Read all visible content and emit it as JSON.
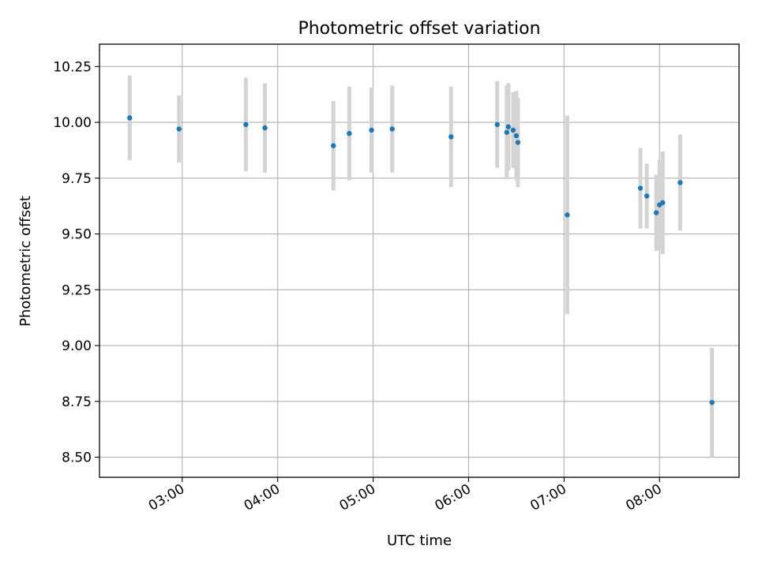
{
  "chart_data": {
    "type": "scatter",
    "title": "Photometric offset variation",
    "xlabel": "UTC time",
    "ylabel": "Photometric offset",
    "x_axis_type": "time",
    "xlim": [
      "02:08",
      "08:50"
    ],
    "ylim": [
      8.41,
      10.35
    ],
    "grid": true,
    "x_ticks": [
      "03:00",
      "04:00",
      "05:00",
      "06:00",
      "07:00",
      "08:00"
    ],
    "y_ticks": [
      "8.50",
      "8.75",
      "9.00",
      "9.25",
      "9.50",
      "9.75",
      "10.00",
      "10.25"
    ],
    "point_color": "#1f77b4",
    "errorbar_color": "#d3d3d3",
    "series": [
      {
        "points": [
          {
            "time": "02:27",
            "y": 10.02,
            "err": 0.19
          },
          {
            "time": "02:58",
            "y": 9.97,
            "err": 0.15
          },
          {
            "time": "03:40",
            "y": 9.99,
            "err": 0.21
          },
          {
            "time": "03:52",
            "y": 9.975,
            "err": 0.2
          },
          {
            "time": "04:35",
            "y": 9.895,
            "err": 0.2
          },
          {
            "time": "04:45",
            "y": 9.95,
            "err": 0.21
          },
          {
            "time": "04:59",
            "y": 9.965,
            "err": 0.19
          },
          {
            "time": "05:12",
            "y": 9.97,
            "err": 0.195
          },
          {
            "time": "05:49",
            "y": 9.935,
            "err": 0.225
          },
          {
            "time": "06:18",
            "y": 9.99,
            "err": 0.195
          },
          {
            "time": "06:24",
            "y": 9.955,
            "err": 0.21
          },
          {
            "time": "06:25",
            "y": 9.98,
            "err": 0.195
          },
          {
            "time": "06:28",
            "y": 9.965,
            "err": 0.17
          },
          {
            "time": "06:30",
            "y": 9.94,
            "err": 0.2
          },
          {
            "time": "06:31",
            "y": 9.91,
            "err": 0.2
          },
          {
            "time": "07:02",
            "y": 9.585,
            "err": 0.445
          },
          {
            "time": "07:48",
            "y": 9.705,
            "err": 0.18
          },
          {
            "time": "07:52",
            "y": 9.67,
            "err": 0.145
          },
          {
            "time": "07:58",
            "y": 9.595,
            "err": 0.17
          },
          {
            "time": "08:00",
            "y": 9.63,
            "err": 0.2
          },
          {
            "time": "08:02",
            "y": 9.64,
            "err": 0.23
          },
          {
            "time": "08:13",
            "y": 9.73,
            "err": 0.215
          },
          {
            "time": "08:33",
            "y": 8.745,
            "err": 0.245
          }
        ]
      }
    ]
  }
}
